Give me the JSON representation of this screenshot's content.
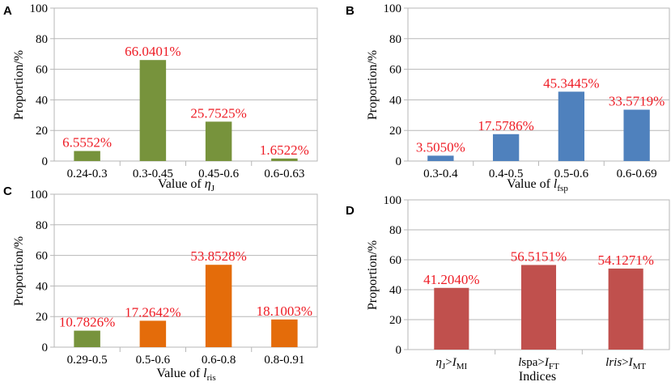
{
  "chart_data": [
    {
      "panel": "A",
      "type": "bar",
      "categories": [
        "0.24-0.3",
        "0.3-0.45",
        "0.45-0.6",
        "0.6-0.63"
      ],
      "values": [
        6.5552,
        66.0401,
        25.7525,
        1.6522
      ],
      "value_labels": [
        "6.5552%",
        "66.0401%",
        "25.7525%",
        "1.6522%"
      ],
      "bar_color": "#77933c",
      "ylabel": "Proportion/%",
      "xlabel_main": "Value of ",
      "xlabel_symbol": "η",
      "xlabel_sub": "J",
      "ylim": [
        0,
        100
      ],
      "yticks": [
        "0",
        "20",
        "40",
        "60",
        "80",
        "100"
      ],
      "grid": true
    },
    {
      "panel": "B",
      "type": "bar",
      "categories": [
        "0.3-0.4",
        "0.4-0.5",
        "0.5-0.6",
        "0.6-0.69"
      ],
      "values": [
        3.505,
        17.5786,
        45.3445,
        33.5719
      ],
      "value_labels": [
        "3.5050%",
        "17.5786%",
        "45.3445%",
        "33.5719%"
      ],
      "bar_color": "#4f81bd",
      "ylabel": "Proportion/%",
      "xlabel_main": "Value of ",
      "xlabel_symbol": "l",
      "xlabel_sub": "fsp",
      "ylim": [
        0,
        100
      ],
      "yticks": [
        "0",
        "20",
        "40",
        "60",
        "80",
        "100"
      ],
      "grid": true
    },
    {
      "panel": "C",
      "type": "bar",
      "categories": [
        "0.29-0.5",
        "0.5-0.6",
        "0.6-0.8",
        "0.8-0.91"
      ],
      "values": [
        10.7826,
        17.2642,
        53.8528,
        18.1003
      ],
      "value_labels": [
        "10.7826%",
        "17.2642%",
        "53.8528%",
        "18.1003%"
      ],
      "bar_color": "#e46c0a",
      "first_bar_color": "#77933c",
      "ylabel": "Proportion/%",
      "xlabel_main": "Value of ",
      "xlabel_symbol": "l",
      "xlabel_sub": "ris",
      "ylim": [
        0,
        100
      ],
      "yticks": [
        "0",
        "20",
        "40",
        "60",
        "80",
        "100"
      ],
      "grid": true
    },
    {
      "panel": "D",
      "type": "bar",
      "categories": [
        {
          "a": "η",
          "a_sub": "J",
          "op": ">",
          "b": "I",
          "b_sub": "MI"
        },
        {
          "a": "l",
          "a_rest": "spa",
          "op": ">",
          "b": "I",
          "b_sub": "FT"
        },
        {
          "a": "lris",
          "op": ">",
          "b": "I",
          "b_sub": "MT"
        }
      ],
      "values": [
        41.204,
        56.5151,
        54.1271
      ],
      "value_labels": [
        "41.2040%",
        "56.5151%",
        "54.1271%"
      ],
      "bar_color": "#c0504d",
      "ylabel": "Proportion/%",
      "xlabel_main": "Indices",
      "ylim": [
        0,
        100
      ],
      "yticks": [
        "0",
        "20",
        "40",
        "60",
        "80",
        "100"
      ],
      "grid": true
    }
  ],
  "colors": {
    "grid": "#b7b7b7",
    "label": "#ee1c25"
  }
}
